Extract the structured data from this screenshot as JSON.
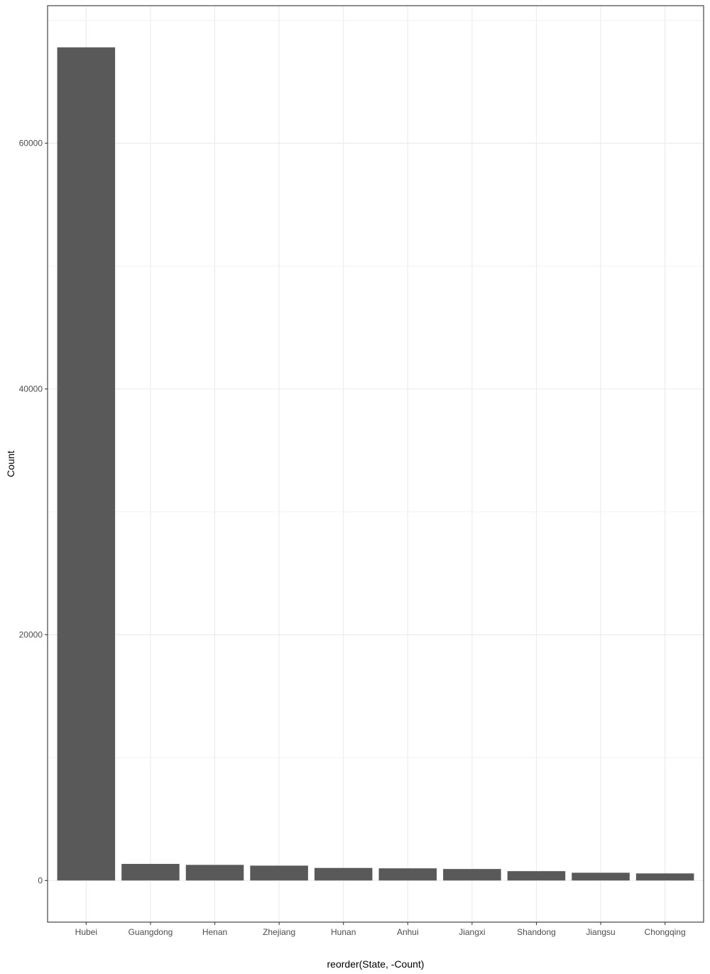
{
  "colors": {
    "bar": "#595959",
    "grid": "#ebebeb",
    "panel_border": "#333333",
    "background": "#ffffff"
  },
  "chart_data": {
    "type": "bar",
    "categories": [
      "Hubei",
      "Guangdong",
      "Henan",
      "Zhejiang",
      "Hunan",
      "Anhui",
      "Jiangxi",
      "Shandong",
      "Jiangsu",
      "Chongqing"
    ],
    "values": [
      67800,
      1350,
      1270,
      1210,
      1020,
      990,
      935,
      760,
      630,
      576
    ],
    "xlabel": "reorder(State, -Count)",
    "ylabel": "Count",
    "ylim": [
      -3390,
      71190
    ],
    "y_ticks": [
      0,
      20000,
      40000,
      60000
    ],
    "y_tick_labels": [
      "0",
      "20000",
      "40000",
      "60000"
    ],
    "grid": true,
    "legend": "none"
  }
}
